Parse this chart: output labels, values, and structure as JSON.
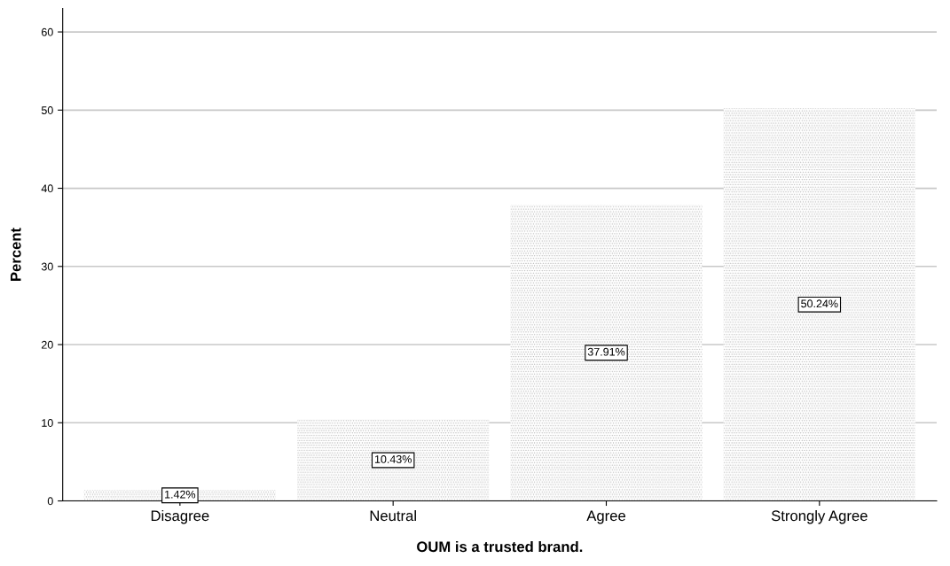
{
  "chart_data": {
    "type": "bar",
    "xlabel": "OUM is a trusted brand.",
    "ylabel": "Percent",
    "categories": [
      "Disagree",
      "Neutral",
      "Agree",
      "Strongly Agree"
    ],
    "values": [
      1.42,
      10.43,
      37.91,
      50.24
    ],
    "value_labels": [
      "1.42%",
      "10.43%",
      "37.91%",
      "50.24%"
    ],
    "color": "#a8a8a8",
    "ylim": [
      0,
      63
    ],
    "yticks": [
      0,
      10,
      20,
      30,
      40,
      50,
      60
    ],
    "grid": "y",
    "legend": false
  }
}
